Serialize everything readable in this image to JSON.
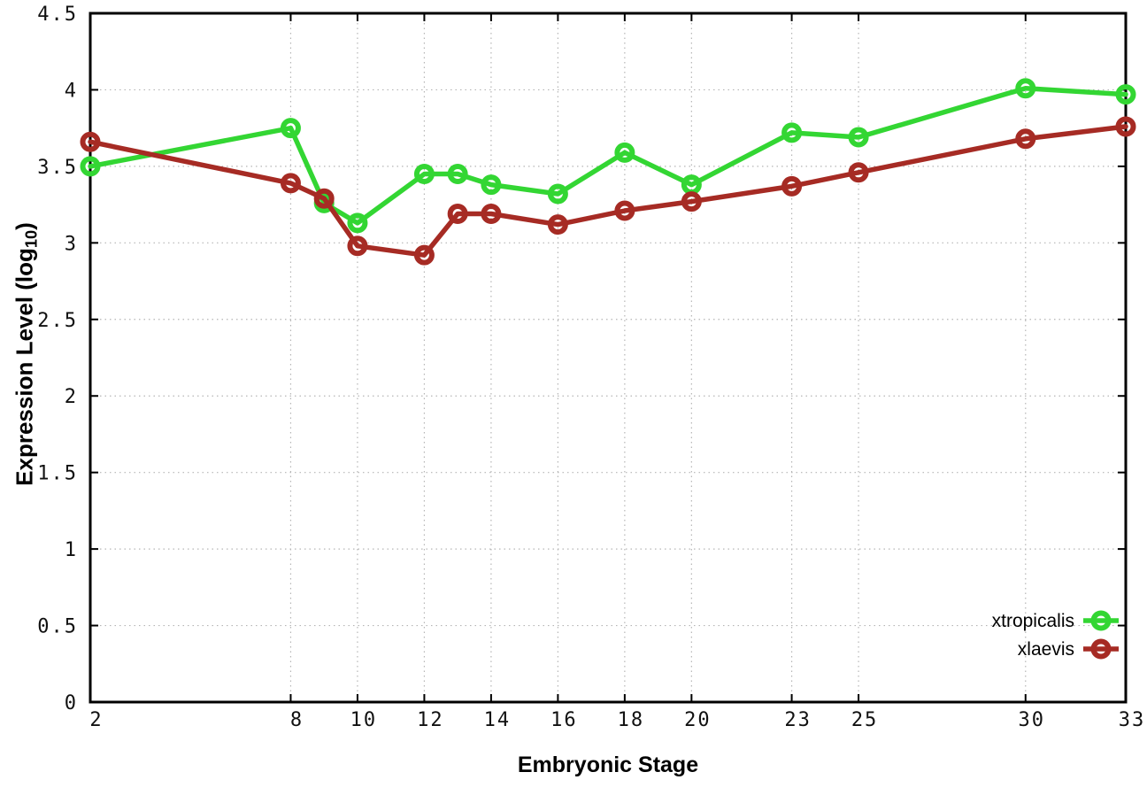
{
  "chart_data": {
    "type": "line",
    "title": "",
    "xlabel": "Embryonic Stage",
    "ylabel": "Expression Level (log10)",
    "ylabel_parts": {
      "prefix": "Expression Level (log",
      "sub": "10",
      "suffix": ")"
    },
    "x": [
      2,
      8,
      9,
      10,
      12,
      13,
      14,
      16,
      18,
      20,
      23,
      25,
      30,
      33
    ],
    "series": [
      {
        "name": "xtropicalis",
        "color": "#33d633",
        "values": [
          3.5,
          3.75,
          3.26,
          3.13,
          3.45,
          3.45,
          3.38,
          3.32,
          3.59,
          3.38,
          3.72,
          3.69,
          4.01,
          3.97
        ]
      },
      {
        "name": "xlaevis",
        "color": "#a62b24",
        "values": [
          3.66,
          3.39,
          3.29,
          2.98,
          2.92,
          3.19,
          3.19,
          3.12,
          3.21,
          3.27,
          3.37,
          3.46,
          3.68,
          3.76
        ]
      }
    ],
    "x_ticks": [
      2,
      8,
      10,
      12,
      14,
      16,
      18,
      20,
      23,
      25,
      30,
      33
    ],
    "y_ticks": [
      0,
      0.5,
      1,
      1.5,
      2,
      2.5,
      3,
      3.5,
      4,
      4.5
    ],
    "xlim": [
      2,
      33
    ],
    "ylim": [
      0,
      4.5
    ],
    "grid": true,
    "legend_position": "bottom-right",
    "colors": {
      "background": "#ffffff",
      "grid": "#b5b5b5",
      "axis": "#000000"
    }
  }
}
